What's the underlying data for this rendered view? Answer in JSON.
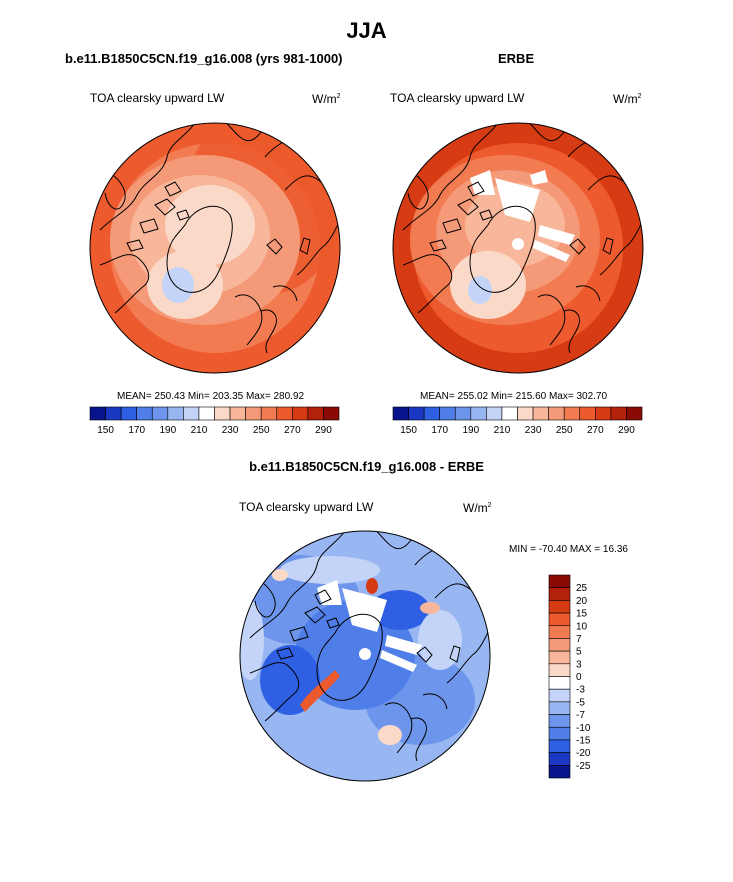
{
  "title": "JJA",
  "panels": [
    {
      "title": "b.e11.B1850C5CN.f19_g16.008 (yrs 981-1000)",
      "variable": "TOA clearsky upward LW",
      "units_base": "W/m",
      "units_exp": "2",
      "stats": "MEAN= 250.43  Min= 203.35  Max= 280.92"
    },
    {
      "title": "ERBE",
      "variable": "TOA clearsky upward LW",
      "units_base": "W/m",
      "units_exp": "2",
      "stats": "MEAN= 255.02  Min= 215.60  Max= 302.70"
    }
  ],
  "diff_panel": {
    "title": "b.e11.B1850C5CN.f19_g16.008 - ERBE",
    "variable": "TOA clearsky upward LW",
    "units_base": "W/m",
    "units_exp": "2",
    "stats": "MIN = -70.40 MAX =  16.36"
  },
  "chart_data": [
    {
      "type": "heatmap",
      "projection": "north-polar-stereographic",
      "title": "b.e11.B1850C5CN.f19_g16.008 (yrs 981-1000)",
      "variable": "TOA clearsky upward LW",
      "units": "W/m2",
      "mean": 250.43,
      "min": 203.35,
      "max": 280.92,
      "colorbar": {
        "orientation": "horizontal",
        "levels": [
          150,
          160,
          170,
          180,
          190,
          200,
          210,
          220,
          230,
          240,
          250,
          260,
          270,
          280,
          290
        ],
        "tick_labels": [
          "150",
          "170",
          "190",
          "210",
          "230",
          "250",
          "270",
          "290"
        ],
        "colors": [
          "#08148c",
          "#1a38c2",
          "#2f5fe3",
          "#4f7ee8",
          "#6e95ec",
          "#98b6f2",
          "#c3d4f8",
          "#ffffff",
          "#fbd9c8",
          "#f8b79b",
          "#f59a78",
          "#f27b52",
          "#ec5a2d",
          "#d73b14",
          "#b3200c",
          "#8a0a06"
        ]
      },
      "field_zones": [
        {
          "region": "greenland-interior",
          "value": 205
        },
        {
          "region": "central-arctic-ocean",
          "value": 228
        },
        {
          "region": "arctic-margin",
          "value": 245
        },
        {
          "region": "northern-continents",
          "value": 255
        },
        {
          "region": "mid-latitudes",
          "value": 265
        },
        {
          "region": "subtropical-edge",
          "value": 275
        }
      ]
    },
    {
      "type": "heatmap",
      "projection": "north-polar-stereographic",
      "title": "ERBE",
      "variable": "TOA clearsky upward LW",
      "units": "W/m2",
      "mean": 255.02,
      "min": 215.6,
      "max": 302.7,
      "colorbar": {
        "orientation": "horizontal",
        "levels": [
          150,
          160,
          170,
          180,
          190,
          200,
          210,
          220,
          230,
          240,
          250,
          260,
          270,
          280,
          290
        ],
        "tick_labels": [
          "150",
          "170",
          "190",
          "210",
          "230",
          "250",
          "270",
          "290"
        ],
        "colors": [
          "#08148c",
          "#1a38c2",
          "#2f5fe3",
          "#4f7ee8",
          "#6e95ec",
          "#98b6f2",
          "#c3d4f8",
          "#ffffff",
          "#fbd9c8",
          "#f8b79b",
          "#f59a78",
          "#f27b52",
          "#ec5a2d",
          "#d73b14",
          "#b3200c",
          "#8a0a06"
        ]
      },
      "field_zones": [
        {
          "region": "greenland-interior",
          "value": 222
        },
        {
          "region": "central-arctic-ocean",
          "value": 238
        },
        {
          "region": "arctic-margin",
          "value": 250
        },
        {
          "region": "northern-continents",
          "value": 262
        },
        {
          "region": "mid-latitudes",
          "value": 272
        },
        {
          "region": "subtropical-edge",
          "value": 285
        }
      ],
      "missing_data": "white wedges near pole"
    },
    {
      "type": "heatmap",
      "projection": "north-polar-stereographic",
      "title": "b.e11.B1850C5CN.f19_g16.008 - ERBE",
      "variable": "TOA clearsky upward LW",
      "units": "W/m2",
      "min": -70.4,
      "max": 16.36,
      "colorbar": {
        "orientation": "vertical",
        "levels": [
          -25,
          -20,
          -15,
          -10,
          -7,
          -5,
          -3,
          0,
          3,
          5,
          7,
          10,
          15,
          20,
          25
        ],
        "tick_labels": [
          "25",
          "20",
          "15",
          "10",
          "7",
          "5",
          "3",
          "0",
          "-3",
          "-5",
          "-7",
          "-10",
          "-15",
          "-20",
          "-25"
        ],
        "colors": [
          "#08148c",
          "#1a38c2",
          "#2f5fe3",
          "#4f7ee8",
          "#6e95ec",
          "#98b6f2",
          "#c3d4f8",
          "#ffffff",
          "#fbd9c8",
          "#f8b79b",
          "#f59a78",
          "#f27b52",
          "#ec5a2d",
          "#d73b14",
          "#b3200c",
          "#8a0a06"
        ]
      },
      "field_zones": [
        {
          "region": "background",
          "value": -5
        },
        {
          "region": "ocean-basins",
          "value": -11
        },
        {
          "region": "greenland-coast",
          "value": 12
        },
        {
          "region": "subtropical-edge",
          "value": -2
        }
      ],
      "missing_data": "white wedges near pole"
    }
  ]
}
